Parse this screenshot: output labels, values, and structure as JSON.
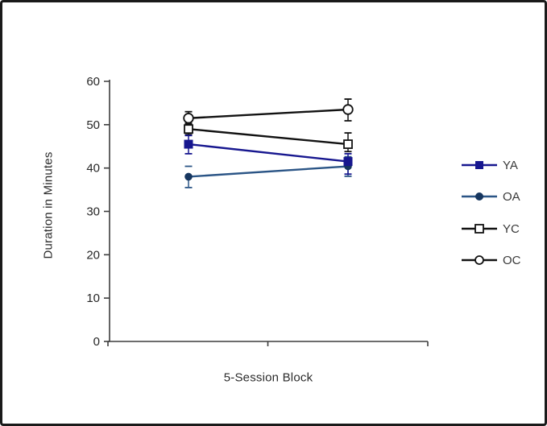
{
  "figure": {
    "background": "#ffffff",
    "border_color": "#1a1a1a",
    "axis_color": "#3d3d3d",
    "tick_label_color": "#262626"
  },
  "chart_data": {
    "type": "line",
    "title": "",
    "xlabel": "5-Session Block",
    "ylabel": "Duration in Minutes",
    "ylim": [
      0,
      60
    ],
    "ytick_step": 10,
    "ytick_labels": [
      "0",
      "10",
      "20",
      "30",
      "40",
      "50",
      "60"
    ],
    "xtick_labels": [
      "",
      "",
      ""
    ],
    "x_blocks": [
      1,
      2
    ],
    "grid": false,
    "legend_position": "right",
    "legend_labels": [
      "YA",
      "OA",
      "YC",
      "OC"
    ],
    "series": [
      {
        "name": "YA",
        "marker": "square-filled",
        "line_color": "#17178f",
        "marker_color": "#17178f",
        "values": [
          45.5,
          41.5
        ],
        "err_plus": [
          2.0,
          1.8
        ],
        "err_minus": [
          2.2,
          2.9
        ]
      },
      {
        "name": "OA",
        "marker": "circle-filled",
        "line_color": "#2b5586",
        "marker_color": "#16365f",
        "values": [
          38.0,
          40.4
        ],
        "err_plus": [
          2.4,
          2.2
        ],
        "err_minus": [
          2.5,
          2.3
        ],
        "upper_cap_only_at_point": 0
      },
      {
        "name": "YC",
        "marker": "square-open",
        "line_color": "#121212",
        "marker_color": "#121212",
        "values": [
          49.0,
          45.5
        ],
        "err_plus": [
          1.3,
          2.6
        ],
        "err_minus": [
          1.3,
          1.7
        ]
      },
      {
        "name": "OC",
        "marker": "circle-open",
        "line_color": "#121212",
        "marker_color": "#121212",
        "values": [
          51.5,
          53.5
        ],
        "err_plus": [
          1.5,
          2.4
        ],
        "err_minus": [
          1.4,
          2.6
        ]
      }
    ]
  }
}
